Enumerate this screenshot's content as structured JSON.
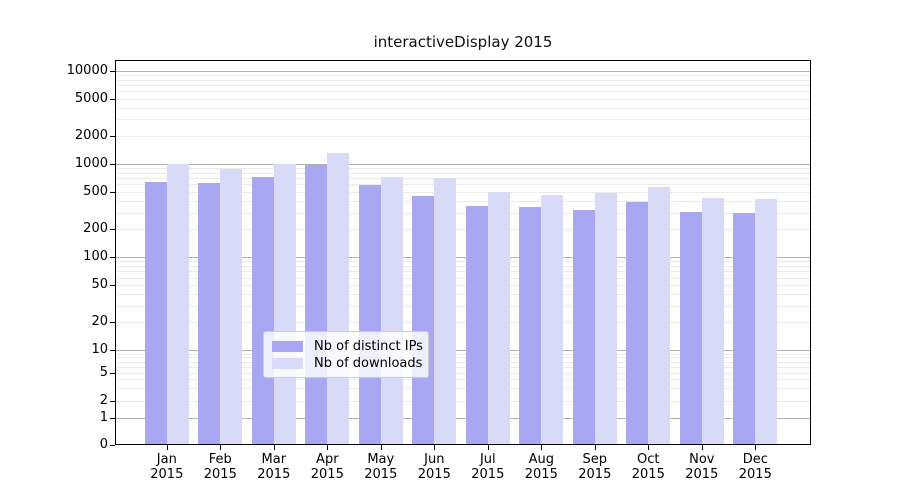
{
  "title": "interactiveDisplay 2015",
  "legend": {
    "items": [
      {
        "label": "Nb of distinct IPs",
        "color": "#a8a8f2"
      },
      {
        "label": "Nb of downloads",
        "color": "#d9d9f8"
      }
    ]
  },
  "axes": {
    "ytick_labels": [
      "10000",
      "5000",
      "2000",
      "1000",
      "500",
      "200",
      "100",
      "50",
      "20",
      "10",
      "5",
      "2",
      "1",
      "0"
    ],
    "xtick_months": [
      "Jan",
      "Feb",
      "Mar",
      "Apr",
      "May",
      "Jun",
      "Jul",
      "Aug",
      "Sep",
      "Oct",
      "Nov",
      "Dec"
    ],
    "xtick_year": "2015"
  },
  "chart_data": {
    "type": "bar",
    "title": "interactiveDisplay 2015",
    "categories": [
      "Jan 2015",
      "Feb 2015",
      "Mar 2015",
      "Apr 2015",
      "May 2015",
      "Jun 2015",
      "Jul 2015",
      "Aug 2015",
      "Sep 2015",
      "Oct 2015",
      "Nov 2015",
      "Dec 2015"
    ],
    "series": [
      {
        "name": "Nb of distinct IPs",
        "color": "#a8a8f2",
        "values": [
          645,
          620,
          730,
          970,
          590,
          455,
          355,
          345,
          320,
          385,
          305,
          295
        ]
      },
      {
        "name": "Nb of downloads",
        "color": "#d9d9f8",
        "values": [
          1000,
          890,
          1000,
          1300,
          720,
          710,
          500,
          460,
          485,
          570,
          430,
          420
        ]
      }
    ],
    "yscale": "symlog",
    "yticks": [
      0,
      1,
      2,
      5,
      10,
      20,
      50,
      100,
      200,
      500,
      1000,
      2000,
      5000,
      10000
    ],
    "ylim": [
      0,
      13000
    ],
    "xlabel": "",
    "ylabel": "",
    "grid": "horizontal",
    "legend_position": "lower center"
  }
}
